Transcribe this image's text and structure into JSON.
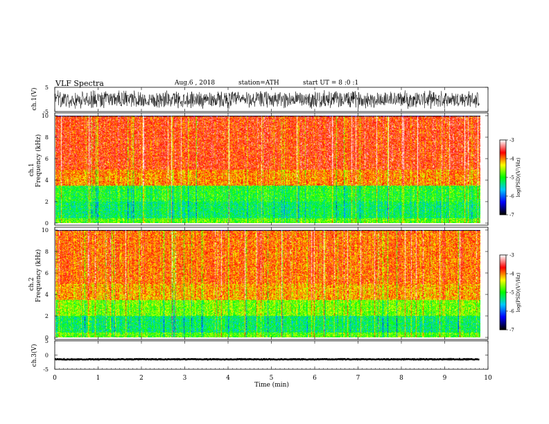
{
  "header": {
    "title": "VLF Spectra",
    "date": "Aug.6 , 2018",
    "station": "station=ATH",
    "start_time": "start UT = 8 :0 :1"
  },
  "chart_data": [
    {
      "type": "line",
      "panel": "ch1-waveform",
      "ylabel": "ch.1(V)",
      "ylim": [
        -5,
        5
      ],
      "yticks": [
        "5",
        "-5"
      ],
      "xlim": [
        0,
        10
      ],
      "series_color": "#000000",
      "amplitude_range_V": [
        -4,
        4
      ]
    },
    {
      "type": "heatmap",
      "panel": "ch1-spectrogram",
      "ylabel": "Frequency (kHz)",
      "channel_label": "ch.1",
      "ylim": [
        0,
        10
      ],
      "yticks": [
        "0",
        "2",
        "4",
        "6",
        "8",
        "10"
      ],
      "xlim": [
        0,
        10
      ],
      "colorbar": {
        "label": "log(PSD)(V²/Hz)",
        "range": [
          -7,
          -3
        ],
        "ticks": [
          "-3",
          "-4",
          "-5",
          "-6",
          "-7"
        ]
      },
      "bands": [
        {
          "from_kHz": 5.0,
          "to_kHz": 10.0,
          "level": -3.7
        },
        {
          "from_kHz": 3.5,
          "to_kHz": 5.0,
          "level": -4.0
        },
        {
          "from_kHz": 2.0,
          "to_kHz": 3.5,
          "level": -5.0
        },
        {
          "from_kHz": 0.5,
          "to_kHz": 2.0,
          "level": -5.2
        },
        {
          "from_kHz": 0.0,
          "to_kHz": 0.5,
          "level": -4.8
        }
      ]
    },
    {
      "type": "heatmap",
      "panel": "ch2-spectrogram",
      "ylabel": "Frequency (kHz)",
      "channel_label": "ch.2",
      "ylim": [
        0,
        10
      ],
      "yticks": [
        "0",
        "2",
        "4",
        "6",
        "8",
        "10"
      ],
      "xlim": [
        0,
        10
      ],
      "colorbar": {
        "label": "log(PSD)(V²/Hz)",
        "range": [
          -7,
          -3
        ],
        "ticks": [
          "-3",
          "-4",
          "-5",
          "-6",
          "-7"
        ]
      },
      "bands": [
        {
          "from_kHz": 5.0,
          "to_kHz": 10.0,
          "level": -3.9
        },
        {
          "from_kHz": 3.5,
          "to_kHz": 5.0,
          "level": -4.1
        },
        {
          "from_kHz": 2.0,
          "to_kHz": 3.5,
          "level": -4.7
        },
        {
          "from_kHz": 0.5,
          "to_kHz": 2.0,
          "level": -5.2
        },
        {
          "from_kHz": 0.0,
          "to_kHz": 0.5,
          "level": -4.8
        }
      ]
    },
    {
      "type": "line",
      "panel": "ch3-waveform",
      "ylabel": "ch.3(V)",
      "ylim": [
        -5,
        5
      ],
      "yticks": [
        "5",
        "0",
        "-5"
      ],
      "xlim": [
        0,
        10
      ],
      "series_color": "#000000",
      "constant_level_V": -1.5
    }
  ],
  "time_axis": {
    "xlabel": "Time (min)",
    "ticks": [
      "0",
      "1",
      "2",
      "3",
      "4",
      "5",
      "6",
      "7",
      "8",
      "9",
      "10"
    ],
    "data_end_min": 9.8
  },
  "colors": {
    "frame": "#000000",
    "colormap": [
      "#000000",
      "#0000ff",
      "#00c8ff",
      "#00ff00",
      "#ffff00",
      "#ff0000",
      "#ffffff"
    ]
  }
}
